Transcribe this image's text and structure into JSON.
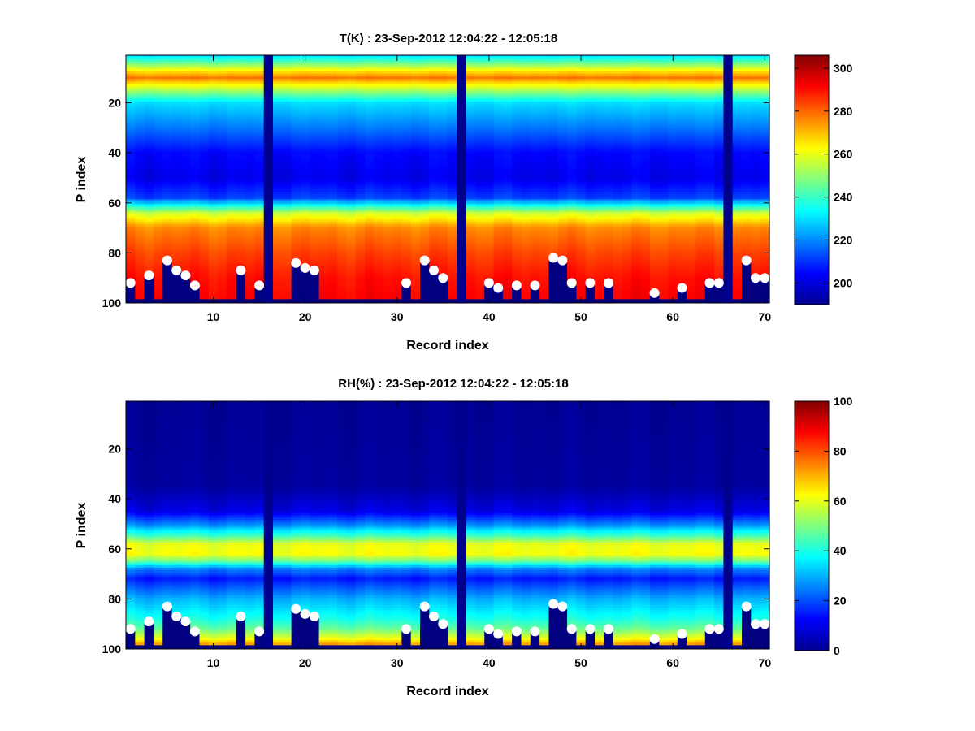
{
  "chart_data": [
    {
      "type": "heatmap",
      "title": "T(K) : 23-Sep-2012 12:04:22 - 12:05:18",
      "xlabel": "Record index",
      "ylabel": "P index",
      "xlim": [
        0.5,
        70.5
      ],
      "ylim": [
        1,
        100
      ],
      "y_reversed": true,
      "x_ticks": [
        10,
        20,
        30,
        40,
        50,
        60,
        70
      ],
      "y_ticks": [
        20,
        40,
        60,
        80,
        100
      ],
      "colormap": "jet",
      "clim": [
        190,
        306
      ],
      "colorbar_ticks": [
        200,
        220,
        240,
        260,
        280,
        300
      ],
      "missing_records": [
        16,
        37,
        66
      ],
      "profile": {
        "p_index": [
          1,
          8,
          10,
          13,
          20,
          30,
          40,
          50,
          58,
          64,
          70,
          80,
          90,
          98
        ],
        "value": [
          228,
          268,
          278,
          262,
          230,
          218,
          205,
          202,
          212,
          256,
          276,
          284,
          290,
          292
        ]
      },
      "surface_markers": [
        {
          "record": 1,
          "p_index": 92
        },
        {
          "record": 3,
          "p_index": 89
        },
        {
          "record": 5,
          "p_index": 83
        },
        {
          "record": 6,
          "p_index": 87
        },
        {
          "record": 7,
          "p_index": 89
        },
        {
          "record": 8,
          "p_index": 93
        },
        {
          "record": 13,
          "p_index": 87
        },
        {
          "record": 15,
          "p_index": 93
        },
        {
          "record": 19,
          "p_index": 84
        },
        {
          "record": 20,
          "p_index": 86
        },
        {
          "record": 21,
          "p_index": 87
        },
        {
          "record": 31,
          "p_index": 92
        },
        {
          "record": 33,
          "p_index": 83
        },
        {
          "record": 34,
          "p_index": 87
        },
        {
          "record": 35,
          "p_index": 90
        },
        {
          "record": 40,
          "p_index": 92
        },
        {
          "record": 41,
          "p_index": 94
        },
        {
          "record": 43,
          "p_index": 93
        },
        {
          "record": 45,
          "p_index": 93
        },
        {
          "record": 47,
          "p_index": 82
        },
        {
          "record": 48,
          "p_index": 83
        },
        {
          "record": 49,
          "p_index": 92
        },
        {
          "record": 51,
          "p_index": 92
        },
        {
          "record": 53,
          "p_index": 92
        },
        {
          "record": 58,
          "p_index": 96
        },
        {
          "record": 61,
          "p_index": 94
        },
        {
          "record": 64,
          "p_index": 92
        },
        {
          "record": 65,
          "p_index": 92
        },
        {
          "record": 68,
          "p_index": 83
        },
        {
          "record": 69,
          "p_index": 90
        },
        {
          "record": 70,
          "p_index": 90
        }
      ]
    },
    {
      "type": "heatmap",
      "title": "RH(%) : 23-Sep-2012 12:04:22 - 12:05:18",
      "xlabel": "Record index",
      "ylabel": "P index",
      "xlim": [
        0.5,
        70.5
      ],
      "ylim": [
        1,
        100
      ],
      "y_reversed": true,
      "x_ticks": [
        10,
        20,
        30,
        40,
        50,
        60,
        70
      ],
      "y_ticks": [
        20,
        40,
        60,
        80,
        100
      ],
      "colormap": "jet",
      "clim": [
        0,
        100
      ],
      "colorbar_ticks": [
        0,
        20,
        40,
        60,
        80,
        100
      ],
      "missing_records": [
        16,
        37,
        66
      ],
      "profile": {
        "p_index": [
          1,
          35,
          45,
          50,
          55,
          58,
          62,
          65,
          68,
          72,
          80,
          88,
          92,
          96,
          98
        ],
        "value": [
          2,
          3,
          10,
          25,
          45,
          60,
          62,
          48,
          25,
          15,
          30,
          40,
          48,
          62,
          72
        ]
      },
      "surface_markers": [
        {
          "record": 1,
          "p_index": 92
        },
        {
          "record": 3,
          "p_index": 89
        },
        {
          "record": 5,
          "p_index": 83
        },
        {
          "record": 6,
          "p_index": 87
        },
        {
          "record": 7,
          "p_index": 89
        },
        {
          "record": 8,
          "p_index": 93
        },
        {
          "record": 13,
          "p_index": 87
        },
        {
          "record": 15,
          "p_index": 93
        },
        {
          "record": 19,
          "p_index": 84
        },
        {
          "record": 20,
          "p_index": 86
        },
        {
          "record": 21,
          "p_index": 87
        },
        {
          "record": 31,
          "p_index": 92
        },
        {
          "record": 33,
          "p_index": 83
        },
        {
          "record": 34,
          "p_index": 87
        },
        {
          "record": 35,
          "p_index": 90
        },
        {
          "record": 40,
          "p_index": 92
        },
        {
          "record": 41,
          "p_index": 94
        },
        {
          "record": 43,
          "p_index": 93
        },
        {
          "record": 45,
          "p_index": 93
        },
        {
          "record": 47,
          "p_index": 82
        },
        {
          "record": 48,
          "p_index": 83
        },
        {
          "record": 49,
          "p_index": 92
        },
        {
          "record": 51,
          "p_index": 92
        },
        {
          "record": 53,
          "p_index": 92
        },
        {
          "record": 58,
          "p_index": 96
        },
        {
          "record": 61,
          "p_index": 94
        },
        {
          "record": 64,
          "p_index": 92
        },
        {
          "record": 65,
          "p_index": 92
        },
        {
          "record": 68,
          "p_index": 83
        },
        {
          "record": 69,
          "p_index": 90
        },
        {
          "record": 70,
          "p_index": 90
        }
      ]
    }
  ]
}
